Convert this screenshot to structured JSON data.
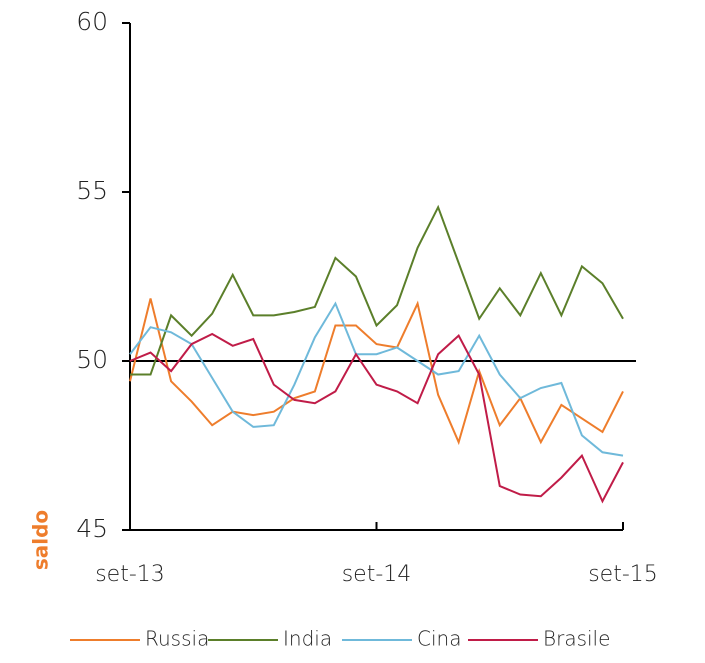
{
  "chart_data": {
    "type": "line",
    "y_label": "saldo",
    "categories": [
      "set-13",
      null,
      null,
      null,
      null,
      null,
      null,
      null,
      null,
      null,
      null,
      null,
      "set-14",
      null,
      null,
      null,
      null,
      null,
      null,
      null,
      null,
      null,
      null,
      null,
      "set-15"
    ],
    "ylim": [
      45,
      60
    ],
    "yticks": [
      45,
      50,
      55,
      60
    ],
    "reference_line": 50,
    "series": [
      {
        "name": "Russia",
        "color": "#ee7d2c",
        "values": [
          49.4,
          51.85,
          49.4,
          48.8,
          48.1,
          48.5,
          48.4,
          48.5,
          48.9,
          49.1,
          51.05,
          51.05,
          50.5,
          50.4,
          51.7,
          49.0,
          47.6,
          49.7,
          48.1,
          48.9,
          47.6,
          48.7,
          48.3,
          47.9,
          49.1
        ]
      },
      {
        "name": "India",
        "color": "#5b7f2a",
        "values": [
          49.6,
          49.6,
          51.35,
          50.75,
          51.4,
          52.55,
          51.35,
          51.35,
          51.45,
          51.6,
          53.05,
          52.5,
          51.05,
          51.65,
          53.35,
          54.55,
          52.9,
          51.25,
          52.15,
          51.35,
          52.6,
          51.35,
          52.8,
          52.3,
          51.25
        ]
      },
      {
        "name": "Cina",
        "color": "#6fb9da",
        "values": [
          50.2,
          51.0,
          50.85,
          50.5,
          49.5,
          48.5,
          48.05,
          48.1,
          49.3,
          50.7,
          51.7,
          50.2,
          50.2,
          50.4,
          50.0,
          49.6,
          49.7,
          50.75,
          49.6,
          48.9,
          49.2,
          49.35,
          47.8,
          47.3,
          47.2
        ]
      },
      {
        "name": "Brasile",
        "color": "#c01c48",
        "values": [
          50.0,
          50.25,
          49.7,
          50.5,
          50.8,
          50.45,
          50.65,
          49.3,
          48.85,
          48.75,
          49.1,
          50.2,
          49.3,
          49.1,
          48.75,
          50.2,
          50.75,
          49.6,
          46.3,
          46.05,
          46.0,
          46.55,
          47.2,
          45.85,
          47.0
        ]
      }
    ]
  }
}
